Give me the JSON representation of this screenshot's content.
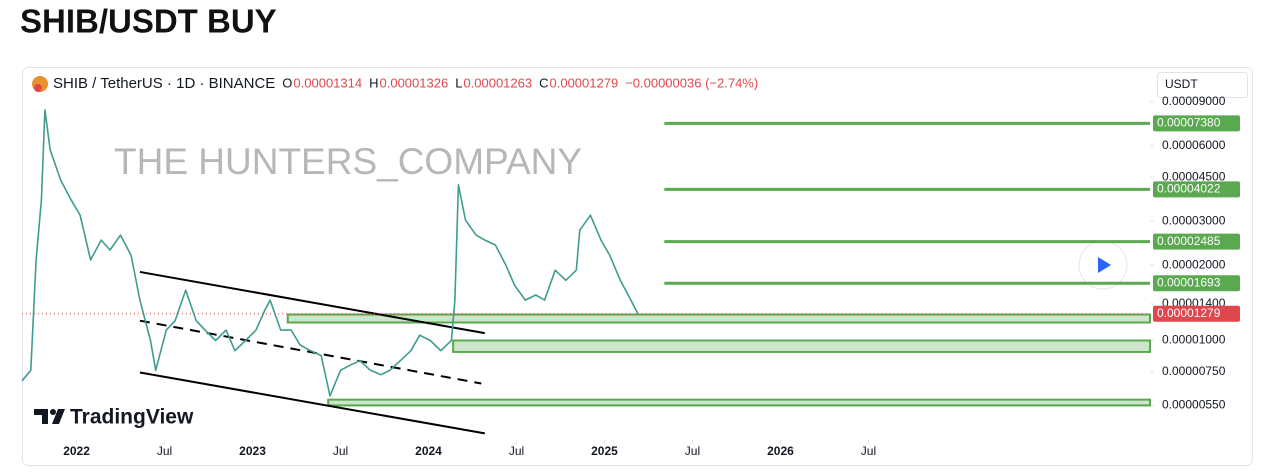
{
  "title": "SHIB/USDT BUY",
  "chart_data": {
    "type": "line",
    "symbol": "SHIB / TetherUS · 1D · BINANCE",
    "ohlc": [
      {
        "key": "O",
        "value": "0.00001314"
      },
      {
        "key": "H",
        "value": "0.00001326"
      },
      {
        "key": "L",
        "value": "0.00001263"
      },
      {
        "key": "C",
        "value": "0.00001279"
      }
    ],
    "change": "−0.00000036 (−2.74%)",
    "currency": "USDT",
    "watermark": "THE HUNTERS_COMPANY",
    "brand": "TradingView",
    "log_scale": true,
    "xlim": [
      2021.69,
      2028.1
    ],
    "xticks": [
      2022,
      {
        "value": 2022.5,
        "label": "Jul"
      },
      2023,
      {
        "value": 2023.5,
        "label": "Jul"
      },
      2024,
      {
        "value": 2024.5,
        "label": "Jul"
      },
      2025,
      {
        "value": 2025.5,
        "label": "Jul"
      },
      2026,
      {
        "value": 2026.5,
        "label": "Jul"
      }
    ],
    "ylim": [
      4e-06,
      9.5e-05
    ],
    "yticks": [
      {
        "value": 9e-05,
        "label": "0.00009000"
      },
      {
        "value": 6e-05,
        "label": "0.00006000"
      },
      {
        "value": 4.5e-05,
        "label": "0.00004500"
      },
      {
        "value": 3e-05,
        "label": "0.00003000"
      },
      {
        "value": 2e-05,
        "label": "0.00002000"
      },
      {
        "value": 1.4e-05,
        "label": "0.00001400"
      },
      {
        "value": 1e-05,
        "label": "0.00001000"
      },
      {
        "value": 7.5e-06,
        "label": "0.00000750"
      },
      {
        "value": 5.5e-06,
        "label": "0.00000550"
      }
    ],
    "series": [
      {
        "color": "#3f9c8f",
        "x": [
          2021.69,
          2021.74,
          2021.77,
          2021.8,
          2021.82,
          2021.85,
          2021.91,
          2021.97,
          2022.02,
          2022.08,
          2022.14,
          2022.19,
          2022.25,
          2022.31,
          2022.36,
          2022.42,
          2022.45,
          2022.51,
          2022.56,
          2022.62,
          2022.68,
          2022.73,
          2022.79,
          2022.85,
          2022.9,
          2022.96,
          2023.02,
          2023.07,
          2023.1,
          2023.16,
          2023.22,
          2023.27,
          2023.33,
          2023.39,
          2023.44,
          2023.5,
          2023.56,
          2023.61,
          2023.67,
          2023.73,
          2023.78,
          2023.84,
          2023.9,
          2023.95,
          2024.01,
          2024.07,
          2024.13,
          2024.15,
          2024.17,
          2024.21,
          2024.27,
          2024.32,
          2024.38,
          2024.44,
          2024.49,
          2024.55,
          2024.61,
          2024.66,
          2024.72,
          2024.78,
          2024.84,
          2024.86,
          2024.92,
          2024.98,
          2025.03,
          2025.09,
          2025.15,
          2025.19
        ],
        "values": [
          6.9e-06,
          7.6e-06,
          2.1e-05,
          3.64e-05,
          8.36e-05,
          5.78e-05,
          4.38e-05,
          3.64e-05,
          3.17e-05,
          2.1e-05,
          2.52e-05,
          2.3e-05,
          2.64e-05,
          2.19e-05,
          1.45e-05,
          1e-05,
          7.6e-06,
          1.1e-05,
          1.2e-05,
          1.59e-05,
          1.2e-05,
          1.1e-05,
          1e-05,
          1.1e-05,
          9.1e-06,
          1e-05,
          1.1e-05,
          1.32e-05,
          1.45e-05,
          1.1e-05,
          1.1e-05,
          9.6e-06,
          9.1e-06,
          8.7e-06,
          6e-06,
          7.6e-06,
          8e-06,
          8.3e-06,
          7.6e-06,
          7.3e-06,
          7.6e-06,
          8.3e-06,
          9.1e-06,
          1.05e-05,
          1e-05,
          9.1e-06,
          1e-05,
          1.45e-05,
          4.19e-05,
          3.03e-05,
          2.64e-05,
          2.52e-05,
          2.41e-05,
          2e-05,
          1.66e-05,
          1.45e-05,
          1.52e-05,
          1.45e-05,
          1.91e-05,
          1.74e-05,
          1.91e-05,
          2.76e-05,
          3.17e-05,
          2.52e-05,
          2.19e-05,
          1.74e-05,
          1.45e-05,
          1.279e-05
        ]
      }
    ],
    "last_price": {
      "value": 1.279e-05,
      "label": "0.00001279",
      "color": "#e0474c"
    },
    "targets": {
      "color": "#5aa84f",
      "x0": 2025.34,
      "values": [
        7.38e-05,
        4.022e-05,
        2.485e-05,
        1.693e-05
      ],
      "value_labels": [
        "0.00007380",
        "0.00004022",
        "0.00002485",
        "0.00001693"
      ]
    },
    "zones": [
      {
        "x0": 2023.2,
        "high": 1.27e-05,
        "low": 1.18e-05
      },
      {
        "x0": 2024.14,
        "high": 1e-05,
        "low": 9e-06
      },
      {
        "x0": 2023.43,
        "high": 5.8e-06,
        "low": 5.5e-06
      }
    ],
    "trendlines": [
      {
        "x": [
          2022.36,
          2024.32
        ],
        "y": [
          1.88e-05,
          1.07e-05
        ],
        "dashed": false
      },
      {
        "x": [
          2022.36,
          2024.3
        ],
        "y": [
          1.2e-05,
          6.73e-06
        ],
        "dashed": true
      },
      {
        "x": [
          2022.36,
          2024.32
        ],
        "y": [
          7.45e-06,
          4.25e-06
        ],
        "dashed": false
      }
    ]
  }
}
